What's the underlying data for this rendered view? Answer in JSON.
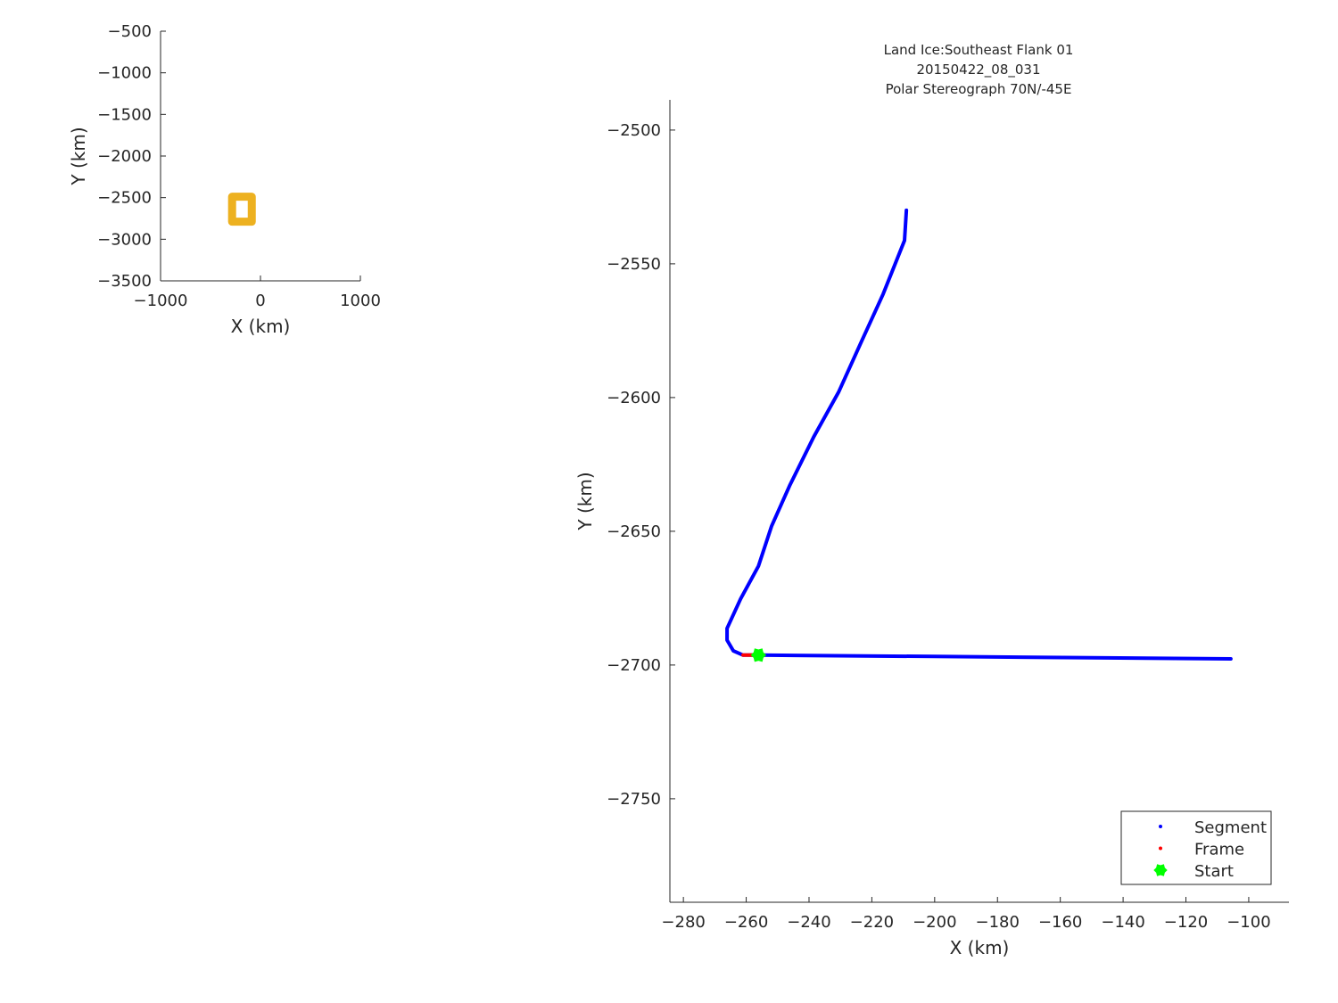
{
  "chart_data": [
    {
      "type": "line",
      "title": "",
      "xlabel": "X (km)",
      "ylabel": "Y (km)",
      "xlim": [
        -1000,
        1000
      ],
      "ylim": [
        -3500,
        -500
      ],
      "xticks": [
        -1000,
        0,
        1000
      ],
      "yticks": [
        -500,
        -1000,
        -1500,
        -2000,
        -2500,
        -3000,
        -3500
      ],
      "xtick_labels": [
        "−1000",
        "0",
        "1000"
      ],
      "ytick_labels": [
        "−500",
        "−1000",
        "−1500",
        "−2000",
        "−2500",
        "−3000",
        "−3500"
      ],
      "grid": false,
      "series": [
        {
          "color": "#EDB120",
          "x": [
            -284,
            -87,
            -87,
            -284,
            -284
          ],
          "y": [
            -2489,
            -2489,
            -2789,
            -2789,
            -2489
          ]
        }
      ]
    },
    {
      "type": "line",
      "title_lines": [
        "Land Ice:Southeast Flank 01",
        "20150422_08_031",
        "Polar Stereograph 70N/-45E"
      ],
      "xlabel": "X (km)",
      "ylabel": "Y (km)",
      "xlim": [
        -284.3,
        -87.2
      ],
      "ylim": [
        -2788.7,
        -2488.7
      ],
      "xticks": [
        -280,
        -260,
        -240,
        -220,
        -200,
        -180,
        -160,
        -140,
        -120,
        -100
      ],
      "yticks": [
        -2500,
        -2550,
        -2600,
        -2650,
        -2700,
        -2750
      ],
      "xtick_labels": [
        "−280",
        "−260",
        "−240",
        "−220",
        "−200",
        "−180",
        "−160",
        "−140",
        "−120",
        "−100"
      ],
      "ytick_labels": [
        "−2500",
        "−2550",
        "−2600",
        "−2650",
        "−2700",
        "−2750"
      ],
      "grid": false,
      "legend_position": "bottom-right",
      "series": [
        {
          "name": "Segment",
          "color": "#0000FF",
          "x": [
            -209.0,
            -209.6,
            -211.3,
            -216.4,
            -222.9,
            -230.6,
            -238.5,
            -246.2,
            -251.9,
            -256.1,
            -261.8,
            -266.1,
            -266.1,
            -264.1,
            -261.0,
            -257.6,
            -256.1,
            -200,
            -150,
            -105.7
          ],
          "y": [
            -2530,
            -2541.3,
            -2546.3,
            -2561.3,
            -2578,
            -2598,
            -2614.7,
            -2633,
            -2648,
            -2663,
            -2675.3,
            -2686.3,
            -2690.7,
            -2694.7,
            -2696.3,
            -2696.3,
            -2696.3,
            -2696.8,
            -2697.3,
            -2697.7
          ]
        },
        {
          "name": "Frame",
          "color": "#FF0000",
          "x": [
            -261.0,
            -257.6
          ],
          "y": [
            -2696.3,
            -2696.3
          ]
        },
        {
          "name": "Start",
          "color": "#00FF00",
          "marker": "hexagram",
          "x": [
            -256.1
          ],
          "y": [
            -2696.3
          ]
        }
      ]
    }
  ]
}
